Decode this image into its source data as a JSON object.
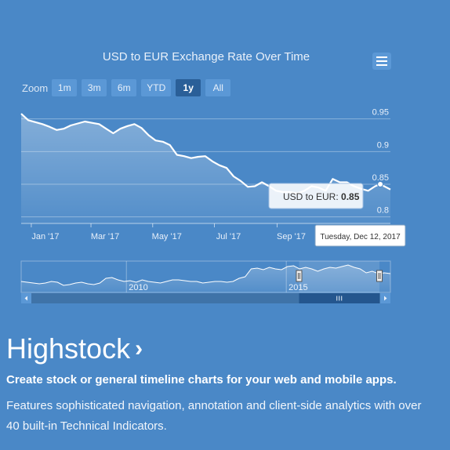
{
  "chart_data": {
    "type": "line",
    "title": "USD to EUR Exchange Rate Over Time",
    "zoom": {
      "label": "Zoom",
      "buttons": [
        "1m",
        "3m",
        "6m",
        "YTD",
        "1y",
        "All"
      ],
      "selected": "1y"
    },
    "x_ticks": [
      "Jan '17",
      "Mar '17",
      "May '17",
      "Jul '17",
      "Sep '17"
    ],
    "x_range": [
      "2016-12-22",
      "2017-12-22"
    ],
    "y_ticks": [
      0.8,
      0.85,
      0.9,
      0.95
    ],
    "y_tick_labels": [
      "0.8",
      "0.85",
      "0.9",
      "0.95"
    ],
    "ylim": [
      0.79,
      0.97
    ],
    "grid": true,
    "series": [
      {
        "name": "USD to EUR",
        "x": [
          "2016-12-22",
          "2016-12-29",
          "2017-01-05",
          "2017-01-12",
          "2017-01-19",
          "2017-01-26",
          "2017-02-02",
          "2017-02-09",
          "2017-02-16",
          "2017-02-23",
          "2017-03-02",
          "2017-03-09",
          "2017-03-16",
          "2017-03-23",
          "2017-03-30",
          "2017-04-06",
          "2017-04-13",
          "2017-04-20",
          "2017-04-27",
          "2017-05-04",
          "2017-05-11",
          "2017-05-18",
          "2017-05-25",
          "2017-06-01",
          "2017-06-08",
          "2017-06-15",
          "2017-06-22",
          "2017-06-29",
          "2017-07-06",
          "2017-07-13",
          "2017-07-20",
          "2017-07-27",
          "2017-08-03",
          "2017-08-10",
          "2017-08-17",
          "2017-08-24",
          "2017-08-31",
          "2017-09-07",
          "2017-09-14",
          "2017-09-21",
          "2017-09-28",
          "2017-10-05",
          "2017-10-12",
          "2017-10-19",
          "2017-10-26",
          "2017-11-02",
          "2017-11-09",
          "2017-11-16",
          "2017-11-23",
          "2017-11-30",
          "2017-12-07",
          "2017-12-12",
          "2017-12-22"
        ],
        "y": [
          0.958,
          0.948,
          0.945,
          0.942,
          0.938,
          0.933,
          0.935,
          0.94,
          0.943,
          0.946,
          0.944,
          0.942,
          0.935,
          0.928,
          0.935,
          0.939,
          0.942,
          0.936,
          0.925,
          0.917,
          0.915,
          0.91,
          0.895,
          0.893,
          0.89,
          0.892,
          0.893,
          0.885,
          0.879,
          0.875,
          0.862,
          0.855,
          0.846,
          0.847,
          0.853,
          0.847,
          0.84,
          0.838,
          0.838,
          0.836,
          0.84,
          0.847,
          0.845,
          0.84,
          0.858,
          0.853,
          0.853,
          0.847,
          0.843,
          0.84,
          0.847,
          0.85,
          0.842
        ]
      }
    ],
    "tooltip": {
      "series_label": "USD to EUR:",
      "value": "0.85",
      "date": "Tuesday, Dec 12, 2017"
    },
    "navigator": {
      "x_labels": [
        "2010",
        "2015"
      ],
      "values": [
        0.74,
        0.73,
        0.72,
        0.71,
        0.72,
        0.74,
        0.73,
        0.69,
        0.7,
        0.72,
        0.73,
        0.71,
        0.7,
        0.72,
        0.78,
        0.79,
        0.76,
        0.74,
        0.75,
        0.73,
        0.76,
        0.74,
        0.73,
        0.72,
        0.74,
        0.76,
        0.76,
        0.75,
        0.74,
        0.74,
        0.72,
        0.73,
        0.74,
        0.74,
        0.73,
        0.74,
        0.78,
        0.8,
        0.9,
        0.91,
        0.89,
        0.92,
        0.9,
        0.89,
        0.93,
        0.94,
        0.9,
        0.92,
        0.9,
        0.87,
        0.9,
        0.92,
        0.91,
        0.93,
        0.95,
        0.92,
        0.9,
        0.85,
        0.87,
        0.84,
        0.85,
        0.84
      ],
      "selection_start_fraction": 0.846,
      "selection_end_fraction": 1.0
    }
  },
  "hero": {
    "title": "Highstock",
    "chevron": "›",
    "subtitle": "Create stock or general timeline charts for your web and mobile apps.",
    "description": "Features sophisticated navigation, annotation and client-side analytics with over 40 built-in Technical Indicators."
  },
  "icons": {
    "menu": "hamburger-menu-icon",
    "scroll_left": "left-arrow-icon",
    "scroll_right": "right-arrow-icon",
    "scroll_thumb": "grip-lines-icon"
  },
  "colors": {
    "background": "#4a88c7",
    "line": "#ffffff",
    "button": "#5b98d6",
    "button_active": "#2a5f98",
    "scrollbar": "#3f73a8"
  }
}
